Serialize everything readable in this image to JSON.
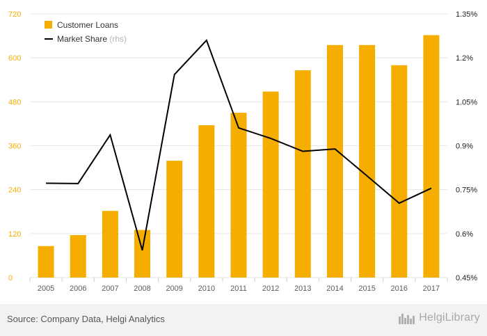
{
  "chart_data": {
    "type": "bar",
    "categories": [
      "2005",
      "2006",
      "2007",
      "2008",
      "2009",
      "2010",
      "2011",
      "2012",
      "2013",
      "2014",
      "2015",
      "2016",
      "2017"
    ],
    "series": [
      {
        "name": "Customer Loans",
        "type": "bar",
        "axis": "left",
        "color": "#f5ae00",
        "values": [
          86,
          116,
          182,
          130,
          319,
          416,
          450,
          508,
          566,
          635,
          635,
          580,
          662
        ]
      },
      {
        "name": "Market Share",
        "name_suffix": "(rhs)",
        "type": "line",
        "axis": "right",
        "color": "#000000",
        "values": [
          0.772,
          0.771,
          0.937,
          0.543,
          1.143,
          1.26,
          0.961,
          0.925,
          0.881,
          0.889,
          0.797,
          0.704,
          0.755
        ]
      }
    ],
    "left_axis": {
      "ylim": [
        0,
        720
      ],
      "ticks": [
        0,
        120,
        240,
        360,
        480,
        600,
        720
      ],
      "tick_labels": [
        "0",
        "120",
        "240",
        "360",
        "480",
        "600",
        "720"
      ],
      "tick_color": "#f5ae00"
    },
    "right_axis": {
      "ylim": [
        0.45,
        1.35
      ],
      "ticks": [
        0.45,
        0.6,
        0.75,
        0.9,
        1.05,
        1.2,
        1.35
      ],
      "tick_labels": [
        "0.45%",
        "0.6%",
        "0.75%",
        "0.9%",
        "1.05%",
        "1.2%",
        "1.35%"
      ]
    },
    "grid": true,
    "legend_position": "top-left"
  },
  "footer": {
    "source": "Source: Company Data, Helgi Analytics",
    "brand": "HelgiLibrary"
  },
  "colors": {
    "bar": "#f5ae00",
    "line": "#000000",
    "grid": "#e6e6e6",
    "footer_bg": "#f2f2f2"
  }
}
